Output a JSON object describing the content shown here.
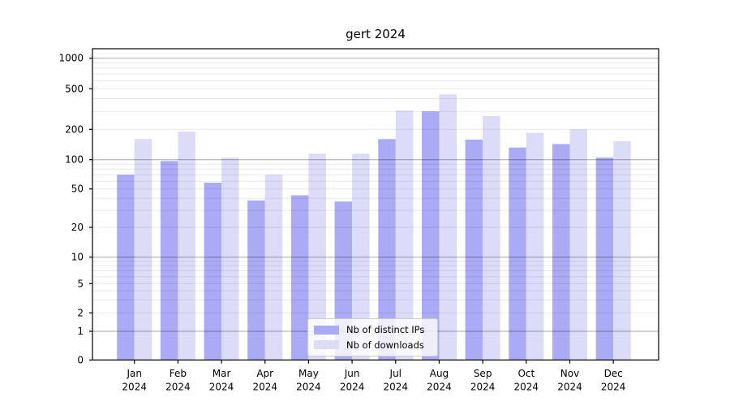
{
  "chart_data": {
    "type": "bar",
    "title": "gert 2024",
    "xlabel": "",
    "ylabel": "",
    "y_scale": "log-like (symlog)",
    "ylim": [
      0,
      1300
    ],
    "grid": "horizontal, drawn over bars; major at 1/10/100/1000, minor at 2-9 per decade",
    "legend_position": "bottom-center",
    "y_ticks": [
      0,
      1,
      2,
      5,
      10,
      20,
      50,
      100,
      200,
      500,
      1000
    ],
    "y_tick_labels": [
      "0",
      "1",
      "2",
      "5",
      "10",
      "20",
      "50",
      "100",
      "200",
      "500",
      "1000"
    ],
    "categories": [
      "Jan 2024",
      "Feb 2024",
      "Mar 2024",
      "Apr 2024",
      "May 2024",
      "Jun 2024",
      "Jul 2024",
      "Aug 2024",
      "Sep 2024",
      "Oct 2024",
      "Nov 2024",
      "Dec 2024"
    ],
    "x_tick_line1": [
      "Jan",
      "Feb",
      "Mar",
      "Apr",
      "May",
      "Jun",
      "Jul",
      "Aug",
      "Sep",
      "Oct",
      "Nov",
      "Dec"
    ],
    "x_tick_line2": [
      "2024",
      "2024",
      "2024",
      "2024",
      "2024",
      "2024",
      "2024",
      "2024",
      "2024",
      "2024",
      "2024",
      "2024"
    ],
    "series": [
      {
        "name": "Nb of distinct IPs",
        "color": "#aaaaf5",
        "values": [
          70,
          97,
          58,
          38,
          43,
          37,
          160,
          300,
          158,
          132,
          143,
          105
        ]
      },
      {
        "name": "Nb of downloads",
        "color": "#dcdcf8",
        "values": [
          160,
          190,
          105,
          70,
          115,
          115,
          305,
          440,
          270,
          185,
          200,
          153
        ]
      }
    ],
    "colors": {
      "distinct_ips_bar": "#aaaaf5",
      "downloads_bar": "#dcdcf8",
      "major_gridline": "rgba(0,0,0,0.35)",
      "minor_gridline": "rgba(0,0,0,0.09)",
      "axis": "#000000",
      "background": "#ffffff"
    }
  }
}
